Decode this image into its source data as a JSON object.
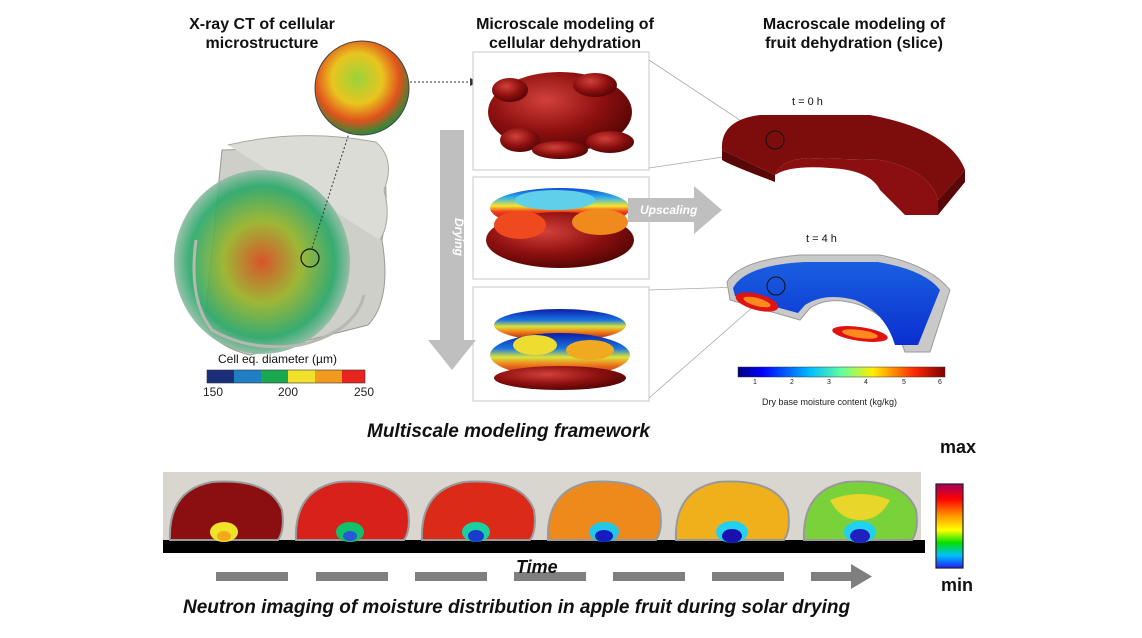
{
  "headers": {
    "xray": [
      "X-ray CT of cellular",
      "microstructure"
    ],
    "micro": [
      "Microscale modeling of",
      "cellular dehydration"
    ],
    "macro": [
      "Macroscale modeling of",
      "fruit dehydration (slice)"
    ]
  },
  "cell_scale": {
    "title": "Cell eq. diameter (µm)",
    "ticks": [
      "150",
      "200",
      "250"
    ],
    "colors": [
      "#1a2e7a",
      "#1f7fc4",
      "#19a84f",
      "#f2e12a",
      "#f29a1d",
      "#e8241f"
    ]
  },
  "drying_label": "Drying",
  "upscaling_label": "Upscaling",
  "time_labels": {
    "t0": "t = 0 h",
    "t4": "t = 4 h"
  },
  "moisture_scale": {
    "ticks": [
      "1",
      "2",
      "3",
      "4",
      "5",
      "6"
    ],
    "title": "Dry base moisture content (kg/kg)"
  },
  "framework_title": "Multiscale modeling framework",
  "neutron_scale": {
    "max": "max",
    "min": "min"
  },
  "time_label": "Time",
  "neutron_title": "Neutron imaging of moisture distribution in apple fruit during solar drying",
  "colors": {
    "dark_red": "#8b0f10",
    "arrow_gray": "#bfbfbf",
    "dash_gray": "#7f7f7f"
  }
}
